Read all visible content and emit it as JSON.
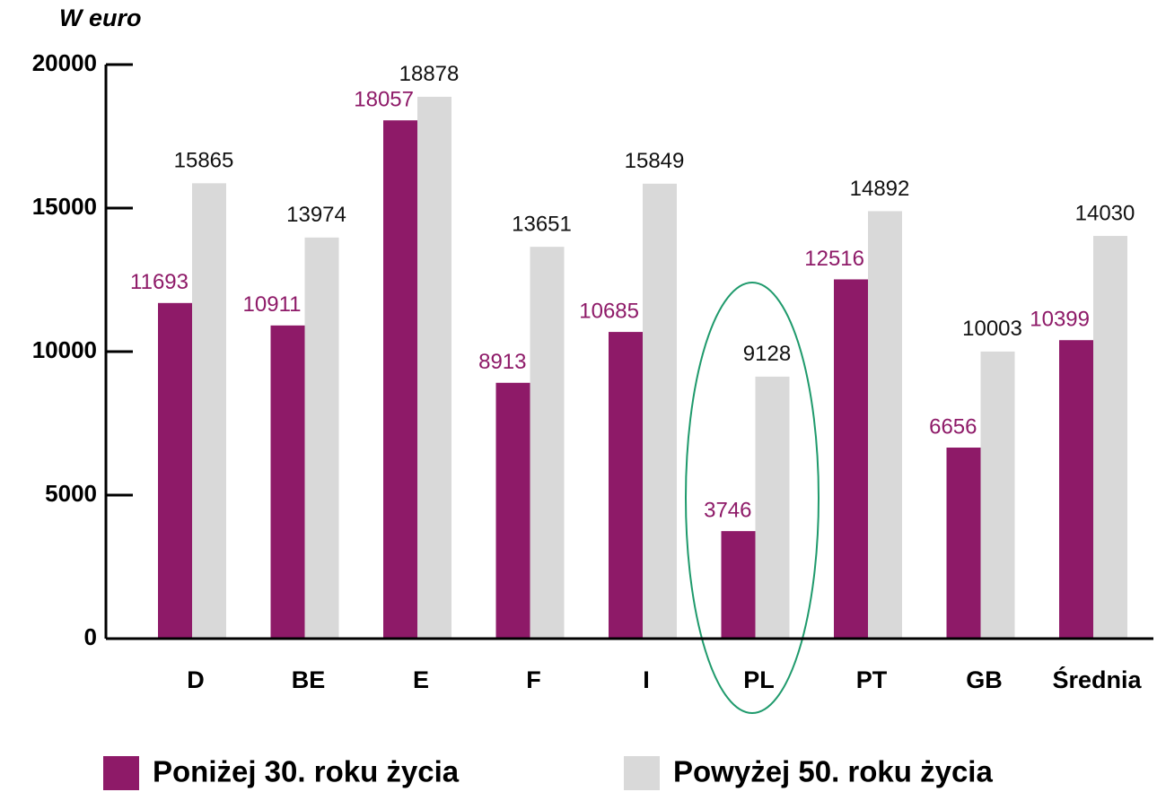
{
  "chart_data": {
    "type": "bar",
    "y_label": "W euro",
    "categories": [
      "D",
      "BE",
      "E",
      "F",
      "I",
      "PL",
      "PT",
      "GB",
      "Średnia"
    ],
    "series": [
      {
        "name": "Poniżej 30. roku życia",
        "color": "#8e1a68",
        "values": [
          11693,
          10911,
          18057,
          8913,
          10685,
          3746,
          12516,
          6656,
          10399
        ]
      },
      {
        "name": "Powyżej 50. roku życia",
        "color": "#d9d9d9",
        "values": [
          15865,
          13974,
          18878,
          13651,
          15849,
          9128,
          14892,
          10003,
          14030
        ]
      }
    ],
    "ylim": [
      0,
      20000
    ],
    "yticks": [
      0,
      5000,
      10000,
      15000,
      20000
    ],
    "grid": false,
    "legend": "bottom"
  }
}
